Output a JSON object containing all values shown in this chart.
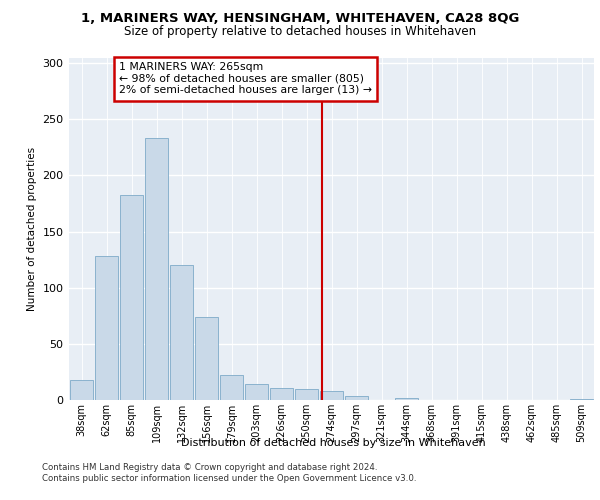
{
  "title1": "1, MARINERS WAY, HENSINGHAM, WHITEHAVEN, CA28 8QG",
  "title2": "Size of property relative to detached houses in Whitehaven",
  "xlabel": "Distribution of detached houses by size in Whitehaven",
  "ylabel": "Number of detached properties",
  "categories": [
    "38sqm",
    "62sqm",
    "85sqm",
    "109sqm",
    "132sqm",
    "156sqm",
    "179sqm",
    "203sqm",
    "226sqm",
    "250sqm",
    "274sqm",
    "297sqm",
    "321sqm",
    "344sqm",
    "368sqm",
    "391sqm",
    "415sqm",
    "438sqm",
    "462sqm",
    "485sqm",
    "509sqm"
  ],
  "values": [
    18,
    128,
    183,
    233,
    120,
    74,
    22,
    14,
    11,
    10,
    8,
    4,
    0,
    2,
    0,
    0,
    0,
    0,
    0,
    0,
    1
  ],
  "bar_color": "#c9d9e8",
  "bar_edge_color": "#7eaac8",
  "vline_color": "#cc0000",
  "annotation_line1": "1 MARINERS WAY: 265sqm",
  "annotation_line2": "← 98% of detached houses are smaller (805)",
  "annotation_line3": "2% of semi-detached houses are larger (13) →",
  "annotation_box_color": "#cc0000",
  "ylim": [
    0,
    305
  ],
  "yticks": [
    0,
    50,
    100,
    150,
    200,
    250,
    300
  ],
  "background_color": "#e8eef5",
  "footer_line1": "Contains HM Land Registry data © Crown copyright and database right 2024.",
  "footer_line2": "Contains public sector information licensed under the Open Government Licence v3.0."
}
